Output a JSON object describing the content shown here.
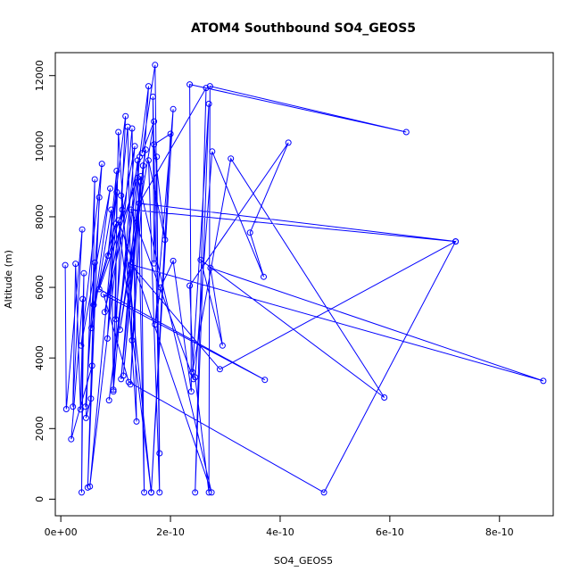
{
  "chart_data": {
    "type": "line",
    "title": "ATOM4 Southbound SO4_GEOS5",
    "xlabel": "SO4_GEOS5",
    "ylabel": "Altitude (m)",
    "xlim": [
      -1e-11,
      8.98e-10
    ],
    "ylim": [
      -470,
      12650
    ],
    "x_ticks": [
      0,
      2e-10,
      4e-10,
      6e-10,
      8e-10
    ],
    "x_tick_labels": [
      "0e+00",
      "2e-10",
      "4e-10",
      "6e-10",
      "8e-10"
    ],
    "y_ticks": [
      0,
      2000,
      4000,
      6000,
      8000,
      10000,
      12000
    ],
    "y_tick_labels": [
      "0",
      "2000",
      "4000",
      "6000",
      "8000",
      "10000",
      "12000"
    ],
    "grid": false,
    "legend": "none",
    "colors": {
      "series": "#0000ff",
      "axes": "#000000",
      "background": "#ffffff"
    },
    "series": [
      {
        "marker": "open-circle",
        "line": true,
        "points": [
          [
            8e-12,
            6630
          ],
          [
            1e-11,
            2550
          ],
          [
            3.9e-11,
            7640
          ],
          [
            2.2e-11,
            2620
          ],
          [
            2.7e-11,
            6670
          ],
          [
            3.6e-11,
            2540
          ],
          [
            4.2e-11,
            6400
          ],
          [
            3.8e-11,
            190
          ],
          [
            4e-11,
            5670
          ],
          [
            1.9e-11,
            1700
          ],
          [
            5.7e-11,
            3780
          ],
          [
            6.2e-11,
            9060
          ],
          [
            4.6e-11,
            2300
          ],
          [
            5.5e-11,
            2850
          ],
          [
            7e-11,
            8550
          ],
          [
            4.9e-11,
            330
          ],
          [
            6.2e-11,
            6700
          ],
          [
            4.5e-11,
            2620
          ],
          [
            7.5e-11,
            9500
          ],
          [
            3.7e-11,
            4350
          ],
          [
            9e-11,
            8800
          ],
          [
            5.6e-11,
            4850
          ],
          [
            9.2e-11,
            8200
          ],
          [
            9.6e-11,
            3050
          ],
          [
            1.05e-10,
            10400
          ],
          [
            1.38e-10,
            2200
          ],
          [
            1.3e-10,
            10500
          ],
          [
            1e-10,
            5100
          ],
          [
            1.02e-10,
            8700
          ],
          [
            5.3e-11,
            360
          ],
          [
            1.12e-10,
            8200
          ],
          [
            6e-11,
            5500
          ],
          [
            1e-10,
            7800
          ],
          [
            8.5e-11,
            4550
          ],
          [
            1.02e-10,
            9300
          ],
          [
            8.6e-11,
            6900
          ],
          [
            1.18e-10,
            10850
          ],
          [
            9.6e-11,
            3100
          ],
          [
            1.35e-10,
            10000
          ],
          [
            8e-11,
            5300
          ],
          [
            1.44e-10,
            9700
          ],
          [
            1.1e-10,
            3400
          ],
          [
            1.45e-10,
            9000
          ],
          [
            1.27e-10,
            3250
          ],
          [
            1.6e-10,
            11700
          ],
          [
            8.8e-11,
            2800
          ],
          [
            1.4e-10,
            9600
          ],
          [
            1.52e-10,
            190
          ],
          [
            1.46e-10,
            9150
          ],
          [
            1.14e-10,
            3500
          ],
          [
            1.5e-10,
            9450
          ],
          [
            1.55e-10,
            9900
          ],
          [
            1.08e-10,
            4800
          ],
          [
            1.7e-10,
            10700
          ],
          [
            1.48e-10,
            9800
          ],
          [
            1.72e-10,
            12300
          ],
          [
            1.8e-10,
            1300
          ],
          [
            1.68e-10,
            11400
          ],
          [
            1.7e-10,
            6680
          ],
          [
            1.75e-10,
            9700
          ],
          [
            1.8e-10,
            190
          ],
          [
            1.6e-10,
            9600
          ],
          [
            1.9e-10,
            7350
          ],
          [
            1.7e-10,
            10050
          ],
          [
            2e-10,
            10350
          ],
          [
            1.65e-10,
            190
          ],
          [
            2.05e-10,
            11050
          ],
          [
            1.72e-10,
            4950
          ],
          [
            1.82e-10,
            6000
          ],
          [
            2.05e-10,
            6750
          ],
          [
            2.38e-10,
            3050
          ],
          [
            2.35e-10,
            11750
          ],
          [
            6.3e-10,
            10400
          ],
          [
            2.72e-10,
            11700
          ],
          [
            2.7e-10,
            190
          ],
          [
            2.45e-10,
            3450
          ],
          [
            2.76e-10,
            9850
          ],
          [
            3.7e-10,
            6300
          ],
          [
            3.45e-10,
            7550
          ],
          [
            4.15e-10,
            10100
          ],
          [
            2.35e-10,
            6050
          ],
          [
            2.42e-10,
            3400
          ],
          [
            1.28e-10,
            8200
          ],
          [
            7.2e-10,
            7300
          ],
          [
            1.43e-10,
            8380
          ],
          [
            2.65e-10,
            11650
          ],
          [
            2.45e-10,
            190
          ],
          [
            2.7e-10,
            11200
          ],
          [
            2.4e-10,
            3600
          ],
          [
            3.1e-10,
            9650
          ],
          [
            5.9e-10,
            2880
          ],
          [
            2.55e-10,
            6780
          ],
          [
            2.95e-10,
            4350
          ],
          [
            2.73e-10,
            6550
          ],
          [
            8.8e-10,
            3350
          ],
          [
            1.28e-10,
            6650
          ],
          [
            2.9e-10,
            3680
          ],
          [
            7.2e-10,
            7300
          ],
          [
            4.8e-10,
            190
          ],
          [
            1.24e-10,
            3320
          ],
          [
            7.8e-11,
            5800
          ],
          [
            3.72e-10,
            3380
          ],
          [
            7e-11,
            5950
          ],
          [
            1.4e-10,
            9100
          ],
          [
            2.75e-10,
            190
          ],
          [
            1.05e-10,
            7900
          ],
          [
            1.65e-10,
            190
          ],
          [
            1.1e-10,
            8600
          ],
          [
            1.22e-10,
            10550
          ],
          [
            1.3e-10,
            4500
          ]
        ]
      }
    ]
  }
}
